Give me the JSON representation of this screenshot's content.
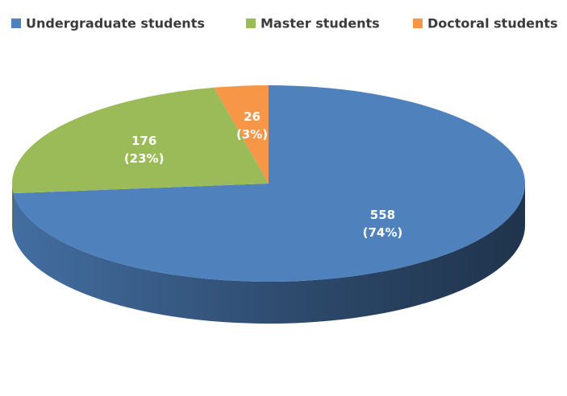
{
  "chart_data": {
    "type": "pie3d",
    "categories": [
      "Undergraduate students",
      "Master students",
      "Doctoral students"
    ],
    "values": [
      558,
      176,
      26
    ],
    "value_labels": [
      [
        "558",
        "(74%)"
      ],
      [
        "176",
        "(23%)"
      ],
      [
        "26",
        "(3%)"
      ]
    ],
    "colors": [
      "#4f81bd",
      "#9bbb59",
      "#f79646"
    ],
    "legend": "top"
  }
}
